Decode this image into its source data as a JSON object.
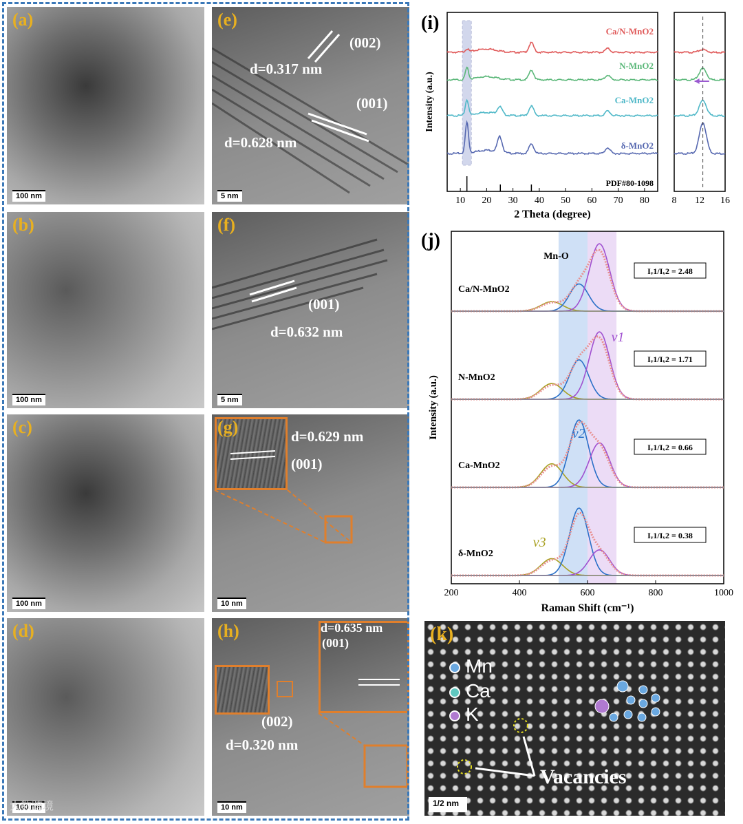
{
  "panels": {
    "a": {
      "label": "(a)",
      "scale": "100 nm"
    },
    "b": {
      "label": "(b)",
      "scale": "100 nm"
    },
    "c": {
      "label": "(c)",
      "scale": "100 nm"
    },
    "d": {
      "label": "(d)",
      "scale": "100 nm"
    },
    "e": {
      "label": "(e)",
      "scale": "5 nm",
      "plane1": "(002)",
      "d1": "d=0.317 nm",
      "plane2": "(001)",
      "d2": "d=0.628 nm"
    },
    "f": {
      "label": "(f)",
      "scale": "5 nm",
      "plane": "(001)",
      "d": "d=0.632 nm"
    },
    "g": {
      "label": "(g)",
      "scale": "10 nm",
      "d": "d=0.629 nm",
      "plane": "(001)"
    },
    "h": {
      "label": "(h)",
      "scale": "10 nm",
      "d1": "d=0.635 nm",
      "plane1": "(001)",
      "plane2": "(002)",
      "d2": "d=0.320 nm"
    },
    "k": {
      "label": "(k)",
      "scale": "1/2 nm",
      "legend": [
        "Mn",
        "Ca",
        "K"
      ],
      "vacancies": "Vacancies"
    }
  },
  "colors": {
    "mn": "#6aa8e0",
    "ca": "#5fc8c0",
    "k": "#b07ad0",
    "accent": "#e8b020",
    "frame": "#3a78b8",
    "inset": "#e07f2c"
  },
  "watermark": "大数跨境",
  "chart_data": [
    {
      "id": "i",
      "type": "line",
      "label": "(i)",
      "xlabel": "2 Theta (degree)",
      "ylabel": "Intensity (a.u.)",
      "xlim": [
        5,
        85
      ],
      "xticks": [
        10,
        20,
        30,
        40,
        50,
        60,
        70,
        80
      ],
      "series": [
        {
          "name": "Ca/N-MnO2",
          "color": "#e05a5a",
          "peaks": [
            [
              12.5,
              0.3
            ],
            [
              37,
              1.0
            ],
            [
              66,
              0.4
            ]
          ]
        },
        {
          "name": "N-MnO2",
          "color": "#5cb87a",
          "peaks": [
            [
              12.5,
              1.2
            ],
            [
              37,
              1.0
            ],
            [
              66,
              0.5
            ]
          ]
        },
        {
          "name": "Ca-MnO2",
          "color": "#4fb8c8",
          "peaks": [
            [
              12.5,
              1.6
            ],
            [
              25,
              0.8
            ],
            [
              37,
              1.0
            ],
            [
              66,
              0.5
            ]
          ]
        },
        {
          "name": "δ-MnO2",
          "color": "#5668b0",
          "peaks": [
            [
              12.5,
              3.2
            ],
            [
              25,
              1.6
            ],
            [
              37,
              1.0
            ],
            [
              66,
              0.6
            ]
          ]
        }
      ],
      "reference": "PDF#80-1098",
      "reference_lines": [
        12.5,
        25.2,
        37.0
      ]
    },
    {
      "id": "i-zoom",
      "type": "line",
      "xlim": [
        8,
        16
      ],
      "xticks": [
        8,
        12,
        16
      ],
      "marker_x": 12.5
    },
    {
      "id": "j",
      "type": "line",
      "label": "(j)",
      "xlabel": "Raman Shift (cm⁻¹)",
      "ylabel": "Intensity (a.u.)",
      "xlim": [
        200,
        1000
      ],
      "xticks": [
        200,
        400,
        600,
        800,
        1000
      ],
      "bands": {
        "v2": [
          515,
          600
        ],
        "v1": [
          600,
          685
        ]
      },
      "band_labels": {
        "mno": "Mn-O",
        "v1": "v1",
        "v2": "v2",
        "v3": "v3"
      },
      "peak_centers": {
        "v3": 495,
        "v2": 575,
        "v1": 635
      },
      "series": [
        {
          "name": "Ca/N-MnO2",
          "ratio": "Iᵥ1/Iᵥ2 = 2.48",
          "v1": 2.48,
          "v2": 1.0,
          "v3": 0.35
        },
        {
          "name": "N-MnO2",
          "ratio": "Iᵥ1/Iᵥ2 = 1.71",
          "v1": 1.71,
          "v2": 1.0,
          "v3": 0.4
        },
        {
          "name": "Ca-MnO2",
          "ratio": "Iᵥ1/Iᵥ2 = 0.66",
          "v1": 0.66,
          "v2": 1.0,
          "v3": 0.35
        },
        {
          "name": "δ-MnO2",
          "ratio": "Iᵥ1/Iᵥ2 = 0.38",
          "v1": 0.38,
          "v2": 1.0,
          "v3": 0.25
        }
      ]
    }
  ]
}
